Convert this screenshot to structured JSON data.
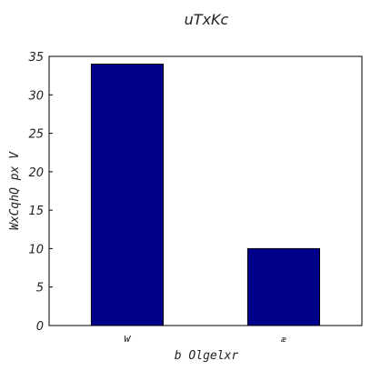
{
  "chart_data": {
    "type": "bar",
    "title": "uTxKc",
    "xlabel": "b Olgelxr",
    "ylabel": "WxCqhQ px V",
    "categories": [
      "w",
      "æ"
    ],
    "values": [
      34,
      10
    ],
    "ylim": [
      0,
      35
    ],
    "yticks": [
      0,
      5,
      10,
      15,
      20,
      25,
      30,
      35
    ],
    "grid": false,
    "legend": "none",
    "bar_color": "#00008b",
    "edge_color": "#000000"
  }
}
